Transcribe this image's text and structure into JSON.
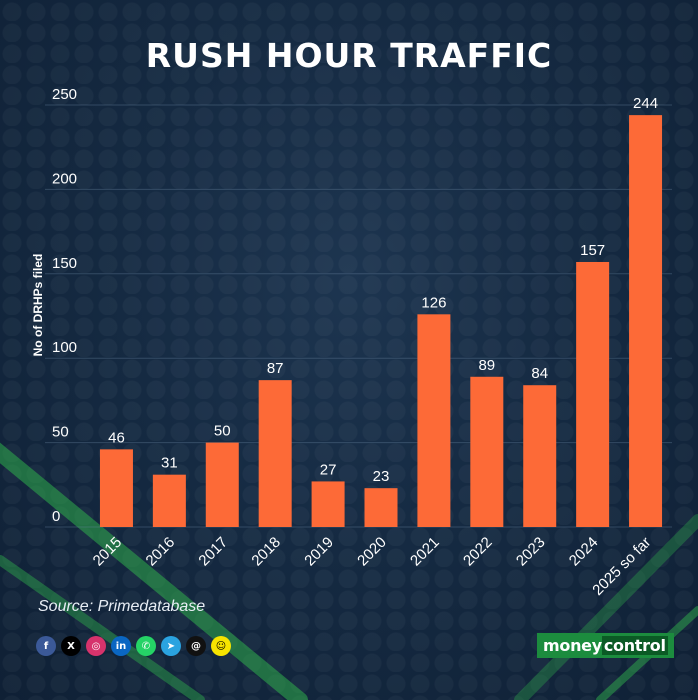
{
  "chart_data": {
    "type": "bar",
    "title": "RUSH HOUR TRAFFIC",
    "ylabel": "No of DRHPs filed",
    "xlabel": "",
    "categories": [
      "2015",
      "2016",
      "2017",
      "2018",
      "2019",
      "2020",
      "2021",
      "2022",
      "2023",
      "2024",
      "2025 so far"
    ],
    "values": [
      46,
      31,
      50,
      87,
      27,
      23,
      126,
      89,
      84,
      157,
      244
    ],
    "ylim": [
      0,
      250
    ],
    "yticks": [
      0,
      50,
      100,
      150,
      200,
      250
    ],
    "grid": true,
    "bar_color": "#fd6a37",
    "data_labels": true
  },
  "source_text": "Source: Primedatabase",
  "social_icons": [
    "facebook-icon",
    "x-icon",
    "instagram-icon",
    "linkedin-icon",
    "whatsapp-icon",
    "telegram-icon",
    "threads-icon",
    "snapchat-icon"
  ],
  "brand": {
    "part1": "money",
    "part2": "control",
    "color": "#1c8c3e"
  }
}
